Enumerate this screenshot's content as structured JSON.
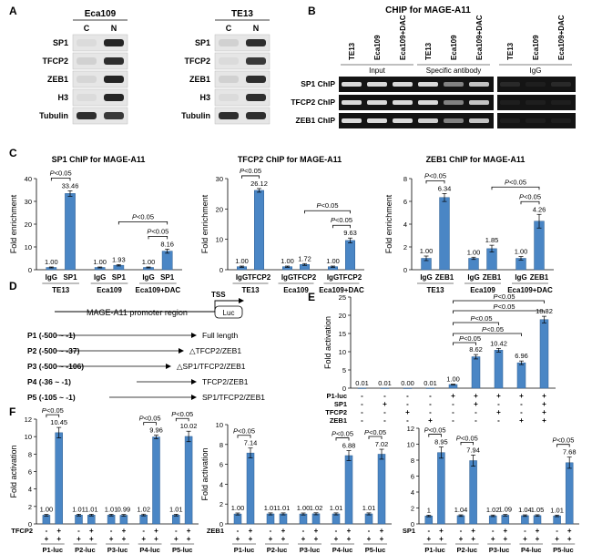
{
  "panels": {
    "A": "A",
    "B": "B",
    "C": "C",
    "D": "D",
    "E": "E",
    "F": "F"
  },
  "colors": {
    "bar": "#4a86c5",
    "bar_edge": "#2f5f92",
    "text": "#000000",
    "blot_dark": "#1a1a1a",
    "blot_bg": "#e6e6e6"
  },
  "panel_a": {
    "blots": [
      {
        "cell": "Eca109",
        "lanes": [
          "C",
          "N"
        ],
        "rows": [
          "SP1",
          "TFCP2",
          "ZEB1",
          "H3",
          "Tubulin"
        ],
        "bands": [
          [
            0.05,
            0.95
          ],
          [
            0.1,
            0.9
          ],
          [
            0.08,
            0.95
          ],
          [
            0.05,
            0.95
          ],
          [
            0.9,
            0.85
          ]
        ]
      },
      {
        "cell": "TE13",
        "lanes": [
          "C",
          "N"
        ],
        "rows": [
          "SP1",
          "TFCP2",
          "ZEB1",
          "H3",
          "Tubulin"
        ],
        "bands": [
          [
            0.1,
            0.9
          ],
          [
            0.05,
            0.85
          ],
          [
            0.1,
            0.9
          ],
          [
            0.05,
            0.9
          ],
          [
            0.9,
            0.9
          ]
        ]
      }
    ]
  },
  "panel_b": {
    "title": "CHIP for MAGE-A11",
    "lanes": [
      "TE13",
      "Eca109",
      "Eca109+DAC",
      "TE13",
      "Eca109",
      "Eca109+DAC",
      "TE13",
      "Eca109",
      "Eca109+DAC"
    ],
    "groups": [
      "Input",
      "Specific antibody",
      "IgG"
    ],
    "rows": [
      {
        "label": "SP1 ChIP",
        "bands": [
          0.9,
          0.9,
          0.9,
          0.9,
          0.5,
          0.8,
          0.1,
          0.05,
          0.1
        ]
      },
      {
        "label": "TFCP2 ChIP",
        "bands": [
          0.9,
          0.9,
          0.9,
          0.9,
          0.5,
          0.8,
          0.05,
          0.05,
          0.05
        ]
      },
      {
        "label": "ZEB1 ChIP",
        "bands": [
          0.9,
          0.9,
          0.9,
          0.85,
          0.5,
          0.8,
          0.05,
          0.05,
          0.05
        ]
      }
    ]
  },
  "chart_data": [
    {
      "panel": "C",
      "type": "bar",
      "title": "SP1 ChIP for MAGE-A11",
      "ylabel": "Fold enrichment",
      "ylim": [
        0,
        40
      ],
      "yticks": [
        "0",
        "10",
        "20",
        "30",
        "40"
      ],
      "categories": [
        "IgG",
        "SP1",
        "IgG",
        "SP1",
        "IgG",
        "SP1"
      ],
      "groups": [
        "TE13",
        "Eca109",
        "Eca109+DAC"
      ],
      "values": [
        1.0,
        33.46,
        1.0,
        1.93,
        1.0,
        8.16
      ],
      "value_labels": [
        "1.00",
        "33.46",
        "1.00",
        "1.93",
        "1.00",
        "8.16"
      ],
      "errors": [
        0.2,
        1.2,
        0.2,
        0.3,
        0.2,
        0.9
      ],
      "annotations": [
        "P<0.05",
        "P<0.05",
        "P<0.05"
      ]
    },
    {
      "panel": "C",
      "type": "bar",
      "title": "TFCP2 ChIP for MAGE-A11",
      "ylabel": "Fold enrichment",
      "ylim": [
        0,
        30
      ],
      "yticks": [
        "0",
        "10",
        "20",
        "30"
      ],
      "categories": [
        "IgG",
        "TFCP2",
        "IgG",
        "TFCP2",
        "IgG",
        "TFCP2"
      ],
      "groups": [
        "TE13",
        "Eca109",
        "Eca109+DAC"
      ],
      "values": [
        1.0,
        26.12,
        1.0,
        1.72,
        1.0,
        9.63
      ],
      "value_labels": [
        "1.00",
        "26.12",
        "1.00",
        "1.72",
        "1.00",
        "9.63"
      ],
      "errors": [
        0.2,
        0.6,
        0.2,
        0.3,
        0.2,
        0.8
      ],
      "annotations": [
        "P<0.05",
        "P<0.05",
        "P<0.05"
      ]
    },
    {
      "panel": "C",
      "type": "bar",
      "title": "ZEB1 ChIP for MAGE-A11",
      "ylabel": "Fold enrichment",
      "ylim": [
        0,
        8
      ],
      "yticks": [
        "0",
        "2",
        "4",
        "6",
        "8"
      ],
      "categories": [
        "IgG",
        "ZEB1",
        "IgG",
        "ZEB1",
        "IgG",
        "ZEB1"
      ],
      "groups": [
        "TE13",
        "Eca109",
        "Eca109+DAC"
      ],
      "values": [
        1.0,
        6.34,
        1.0,
        1.85,
        1.0,
        4.26
      ],
      "value_labels": [
        "1.00",
        "6.34",
        "1.00",
        "1.85",
        "1.00",
        "4.26"
      ],
      "errors": [
        0.2,
        0.35,
        0.1,
        0.3,
        0.15,
        0.6
      ],
      "annotations": [
        "P<0.05",
        "P<0.05",
        "P<0.05"
      ]
    },
    {
      "panel": "E",
      "type": "bar",
      "ylabel": "Fold activation",
      "ylim": [
        0,
        25
      ],
      "yticks": [
        "0",
        "5",
        "10",
        "15",
        "20",
        "25"
      ],
      "values": [
        0.01,
        0.01,
        0.0,
        0.01,
        1.0,
        8.62,
        10.42,
        6.96,
        18.82
      ],
      "value_labels": [
        "0.01",
        "0.01",
        "0.00",
        "0.01",
        "1.00",
        "8.62",
        "10.42",
        "6.96",
        "18.82"
      ],
      "errors": [
        0,
        0,
        0,
        0,
        0.1,
        0.6,
        0.5,
        0.5,
        0.9
      ],
      "row_labels": [
        "P1-luc",
        "SP1",
        "TFCP2",
        "ZEB1"
      ],
      "row_signs": [
        [
          "-",
          "-",
          "-",
          "-",
          "+",
          "+",
          "+",
          "+",
          "+"
        ],
        [
          "-",
          "+",
          "-",
          "-",
          "-",
          "+",
          "-",
          "-",
          "+"
        ],
        [
          "-",
          "-",
          "+",
          "-",
          "-",
          "-",
          "+",
          "-",
          "+"
        ],
        [
          "-",
          "-",
          "-",
          "+",
          "-",
          "-",
          "-",
          "+",
          "+"
        ]
      ],
      "annotations": [
        "P<0.05",
        "P<0.05",
        "P<0.05",
        "P<0.05",
        "P<0.05"
      ]
    },
    {
      "panel": "F",
      "type": "bar",
      "ylabel": "Fold activation",
      "ylim": [
        0,
        12
      ],
      "yticks": [
        "0",
        "2",
        "4",
        "6",
        "8",
        "10",
        "12"
      ],
      "factor": "TFCP2",
      "signs": [
        "-",
        "+",
        "-",
        "+",
        "-",
        "+",
        "-",
        "+",
        "-",
        "+"
      ],
      "groups": [
        "P1-luc",
        "P2-luc",
        "P3-luc",
        "P4-luc",
        "P5-luc"
      ],
      "values": [
        1.0,
        10.45,
        1.01,
        1.01,
        1.01,
        0.99,
        1.02,
        9.96,
        1.01,
        10.02
      ],
      "value_labels": [
        "1.00",
        "10.45",
        "1.01",
        "1.01",
        "1.01",
        "0.99",
        "1.02",
        "9.96",
        "1.01",
        "10.02"
      ],
      "errors": [
        0.1,
        0.6,
        0.1,
        0.1,
        0.1,
        0.1,
        0.1,
        0.2,
        0.1,
        0.6
      ],
      "annotations": [
        "P<0.05",
        "P<0.05",
        "P<0.05"
      ]
    },
    {
      "panel": "F",
      "type": "bar",
      "ylabel": "Fold activation",
      "ylim": [
        0,
        10
      ],
      "yticks": [
        "0",
        "2",
        "4",
        "6",
        "8",
        "10"
      ],
      "factor": "ZEB1",
      "signs": [
        "-",
        "+",
        "-",
        "+",
        "-",
        "+",
        "-",
        "+",
        "-",
        "+"
      ],
      "groups": [
        "P1-luc",
        "P2-luc",
        "P3-luc",
        "P4-luc",
        "P5-luc"
      ],
      "values": [
        1.0,
        7.14,
        1.01,
        1.01,
        1.0,
        1.02,
        1.01,
        6.88,
        1.01,
        7.02
      ],
      "value_labels": [
        "1.00",
        "7.14",
        "1.01",
        "1.01",
        "1.00",
        "1.02",
        "1.01",
        "6.88",
        "1.01",
        "7.02"
      ],
      "errors": [
        0.1,
        0.5,
        0.1,
        0.1,
        0.1,
        0.1,
        0.1,
        0.5,
        0.1,
        0.5
      ],
      "annotations": [
        "P<0.05",
        "P<0.05",
        "P<0.05"
      ]
    },
    {
      "panel": "F",
      "type": "bar",
      "ylabel": "",
      "ylim": [
        0,
        12
      ],
      "yticks": [
        "0",
        "2",
        "4",
        "6",
        "8",
        "10",
        "12"
      ],
      "factor": "SP1",
      "signs": [
        "-",
        "+",
        "-",
        "+",
        "-",
        "+",
        "-",
        "+",
        "-",
        "+"
      ],
      "groups": [
        "P1-luc",
        "P2-luc",
        "P3-luc",
        "P4-luc",
        "P5-luc"
      ],
      "values": [
        1.0,
        8.95,
        1.04,
        7.94,
        1.02,
        1.09,
        1.04,
        1.05,
        1.01,
        7.68
      ],
      "value_labels": [
        "1",
        "8.95",
        "1.04",
        "7.94",
        "1.02",
        "1.09",
        "1.04",
        "1.05",
        "1.01",
        "7.68"
      ],
      "errors": [
        0.1,
        0.7,
        0.1,
        0.7,
        0.1,
        0.1,
        0.1,
        0.1,
        0.1,
        0.7
      ],
      "annotations": [
        "P<0.05",
        "P<0.05",
        "P<0.05"
      ]
    }
  ],
  "panel_d": {
    "region": "MAGE-A11 promoter region",
    "tss": "TSS",
    "luc": "Luc",
    "constructs": [
      {
        "label": "P1 (-500 ~ -1)",
        "desc": "Full length"
      },
      {
        "label": "P2 (-500 ~ -37)",
        "desc": "△TFCP2/ZEB1"
      },
      {
        "label": "P3 (-500 ~ -106)",
        "desc": "△SP1/TFCP2/ZEB1"
      },
      {
        "label": "P4 (-36 ~ -1)",
        "desc": "TFCP2/ZEB1"
      },
      {
        "label": "P5 (-105 ~ -1)",
        "desc": "SP1/TFCP2/ZEB1"
      }
    ]
  }
}
